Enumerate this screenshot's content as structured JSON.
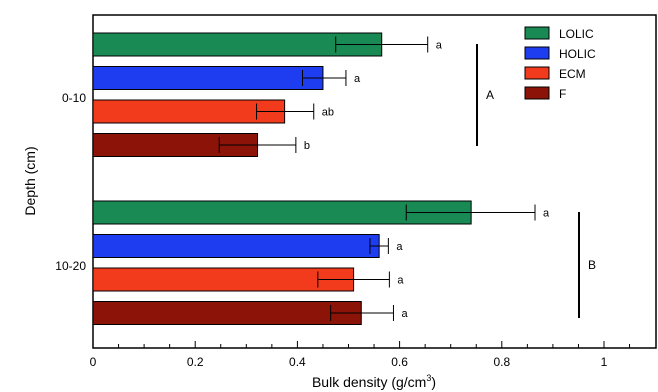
{
  "chart_data": {
    "type": "bar",
    "orientation": "horizontal",
    "title": "",
    "xlabel_main": "Bulk density (g/cm",
    "xlabel_sup": "3",
    "xlabel_close": ")",
    "ylabel": "Depth (cm)",
    "xlim": [
      0,
      1.1
    ],
    "xticks": [
      "0",
      "0.2",
      "0.4",
      "0.6",
      "0.8",
      "1"
    ],
    "grid": false,
    "legend_position": "top-right",
    "series": [
      {
        "name": "LOLIC",
        "color": "#1a8a55"
      },
      {
        "name": "HOLIC",
        "color": "#1f3df0"
      },
      {
        "name": "ECM",
        "color": "#f23a1c"
      },
      {
        "name": "F",
        "color": "#8c1308"
      }
    ],
    "groups": [
      {
        "label": "0-10",
        "group_letter": "A",
        "bars": [
          {
            "series": "LOLIC",
            "mean": 0.565,
            "err_low": 0.475,
            "err_high": 0.655,
            "letter": "a"
          },
          {
            "series": "HOLIC",
            "mean": 0.45,
            "err_low": 0.41,
            "err_high": 0.495,
            "letter": "a"
          },
          {
            "series": "ECM",
            "mean": 0.375,
            "err_low": 0.32,
            "err_high": 0.432,
            "letter": "ab"
          },
          {
            "series": "F",
            "mean": 0.322,
            "err_low": 0.247,
            "err_high": 0.397,
            "letter": "b"
          }
        ]
      },
      {
        "label": "10-20",
        "group_letter": "B",
        "bars": [
          {
            "series": "LOLIC",
            "mean": 0.74,
            "err_low": 0.613,
            "err_high": 0.865,
            "letter": "a"
          },
          {
            "series": "HOLIC",
            "mean": 0.56,
            "err_low": 0.542,
            "err_high": 0.578,
            "letter": "a"
          },
          {
            "series": "ECM",
            "mean": 0.51,
            "err_low": 0.44,
            "err_high": 0.58,
            "letter": "a"
          },
          {
            "series": "F",
            "mean": 0.525,
            "err_low": 0.465,
            "err_high": 0.588,
            "letter": "a"
          }
        ]
      }
    ]
  }
}
